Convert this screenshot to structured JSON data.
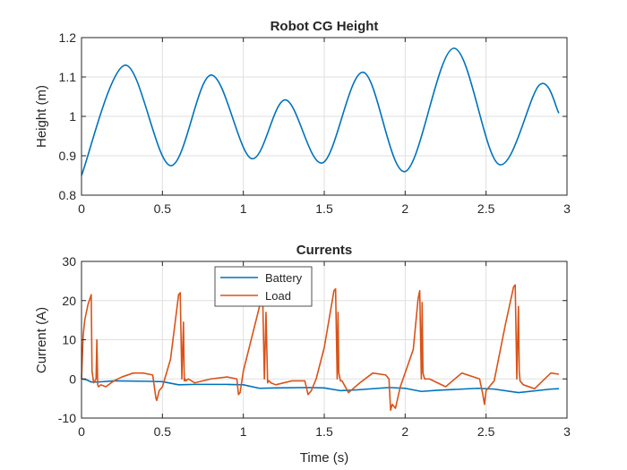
{
  "chart_data": [
    {
      "type": "line",
      "title": "Robot CG Height",
      "xlabel": "",
      "ylabel": "Height (m)",
      "xlim": [
        0,
        3
      ],
      "ylim": [
        0.8,
        1.2
      ],
      "xticks": [
        0,
        0.5,
        1,
        1.5,
        2,
        2.5,
        3
      ],
      "xtick_labels": [
        "0",
        "0.5",
        "1",
        "1.5",
        "2",
        "2.5",
        "3"
      ],
      "yticks": [
        0.8,
        0.9,
        1.0,
        1.1,
        1.2
      ],
      "ytick_labels": [
        "0.8",
        "0.9",
        "1",
        "1.1",
        "1.2"
      ],
      "grid": true,
      "series": [
        {
          "color": "#0072BD",
          "x": [
            0.0,
            0.27,
            0.55,
            0.8,
            1.05,
            1.26,
            1.49,
            1.74,
            2.0,
            2.3,
            2.58,
            2.83,
            2.95
          ],
          "y": [
            0.85,
            1.13,
            0.875,
            1.105,
            0.893,
            1.042,
            0.882,
            1.112,
            0.86,
            1.173,
            0.878,
            1.08,
            1.008
          ]
        }
      ]
    },
    {
      "type": "line",
      "title": "Currents",
      "xlabel": "Time (s)",
      "ylabel": "Current (A)",
      "xlim": [
        0,
        3
      ],
      "ylim": [
        -10,
        30
      ],
      "xticks": [
        0,
        0.5,
        1,
        1.5,
        2,
        2.5,
        3
      ],
      "xtick_labels": [
        "0",
        "0.5",
        "1",
        "1.5",
        "2",
        "2.5",
        "3"
      ],
      "yticks": [
        -10,
        0,
        10,
        20,
        30
      ],
      "ytick_labels": [
        "-10",
        "0",
        "10",
        "20",
        "30"
      ],
      "grid": true,
      "legend": "top-left",
      "series": [
        {
          "name": "Battery",
          "color": "#0072BD",
          "x": [
            0,
            0.03,
            0.06,
            0.1,
            0.2,
            0.4,
            0.5,
            0.6,
            0.7,
            0.9,
            1.0,
            1.1,
            1.2,
            1.4,
            1.5,
            1.6,
            1.7,
            1.9,
            2.0,
            2.1,
            2.2,
            2.45,
            2.55,
            2.7,
            2.9,
            2.95
          ],
          "y": [
            0,
            -0.2,
            -0.8,
            -0.8,
            -0.5,
            -0.6,
            -0.7,
            -1.5,
            -1.4,
            -1.4,
            -1.5,
            -2.4,
            -2.3,
            -2.2,
            -2.3,
            -3.0,
            -2.8,
            -2.2,
            -2.4,
            -3.2,
            -2.9,
            -2.4,
            -2.6,
            -3.5,
            -2.6,
            -2.5
          ]
        },
        {
          "name": "Load",
          "color": "#D95319",
          "x": [
            0,
            0.01,
            0.02,
            0.04,
            0.06,
            0.065,
            0.075,
            0.09,
            0.095,
            0.1,
            0.105,
            0.12,
            0.15,
            0.2,
            0.25,
            0.32,
            0.38,
            0.44,
            0.46,
            0.465,
            0.48,
            0.5,
            0.55,
            0.6,
            0.61,
            0.62,
            0.63,
            0.635,
            0.64,
            0.645,
            0.66,
            0.7,
            0.8,
            0.9,
            0.96,
            0.97,
            0.98,
            1.0,
            1.1,
            1.12,
            1.13,
            1.14,
            1.15,
            1.155,
            1.16,
            1.17,
            1.2,
            1.3,
            1.38,
            1.4,
            1.41,
            1.42,
            1.45,
            1.5,
            1.56,
            1.57,
            1.58,
            1.585,
            1.59,
            1.6,
            1.61,
            1.65,
            1.72,
            1.8,
            1.88,
            1.9,
            1.91,
            1.92,
            1.94,
            1.97,
            2.05,
            2.08,
            2.09,
            2.1,
            2.105,
            2.11,
            2.12,
            2.15,
            2.25,
            2.35,
            2.46,
            2.48,
            2.49,
            2.5,
            2.55,
            2.62,
            2.67,
            2.68,
            2.69,
            2.7,
            2.705,
            2.71,
            2.73,
            2.8,
            2.85,
            2.9,
            2.95
          ],
          "y": [
            0,
            11,
            15,
            19,
            21.5,
            2,
            -1,
            0,
            10,
            -1.5,
            -2,
            -1.5,
            -2,
            -0.5,
            0.5,
            1.5,
            1.5,
            1,
            -5,
            -5.5,
            -3,
            -2,
            5,
            21.5,
            22,
            0,
            14.5,
            -0.5,
            0,
            -0.5,
            0,
            -1,
            0,
            0.5,
            0,
            -4,
            -3.5,
            2,
            18.5,
            20,
            0,
            17,
            -1,
            -0.5,
            -0.5,
            -1,
            -1.5,
            -0.5,
            -0.5,
            -4,
            -3.5,
            -3,
            0,
            8,
            22.5,
            23,
            0,
            17,
            1.5,
            -0.5,
            -0.5,
            -3.5,
            -1,
            1.5,
            1,
            0,
            -8,
            -6.5,
            -7.5,
            -2,
            7.5,
            20.5,
            22.5,
            0,
            19.5,
            1.5,
            0,
            0,
            -2,
            1.5,
            0,
            -4,
            -6.5,
            -3,
            -0.5,
            14,
            23.5,
            24,
            0,
            18.5,
            2,
            -0.5,
            -1.5,
            -2.5,
            -0.5,
            1.5,
            1.2
          ]
        }
      ]
    }
  ]
}
